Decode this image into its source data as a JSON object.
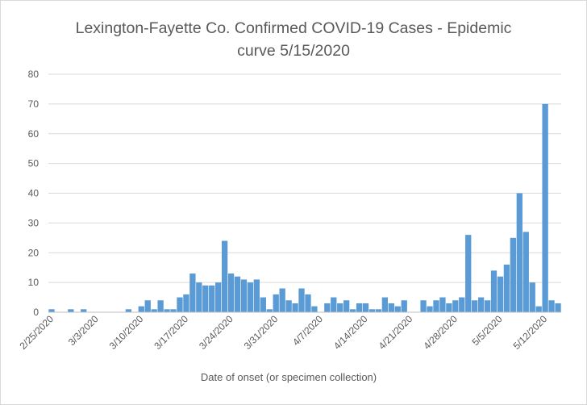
{
  "chart_data": {
    "type": "bar",
    "title_lines": [
      "Lexington-Fayette Co. Confirmed COVID-19 Cases - Epidemic",
      "curve 5/15/2020"
    ],
    "xlabel": "Date of onset (or specimen collection)",
    "ylabel": "",
    "ylim": [
      0,
      80
    ],
    "y_ticks": [
      0,
      10,
      20,
      30,
      40,
      50,
      60,
      70,
      80
    ],
    "grid": true,
    "legend": "none",
    "bar_color": "#5b9bd5",
    "x_tick_labels": [
      "2/25/2020",
      "3/3/2020",
      "3/10/2020",
      "3/17/2020",
      "3/24/2020",
      "3/31/2020",
      "4/7/2020",
      "4/14/2020",
      "4/21/2020",
      "4/28/2020",
      "5/5/2020",
      "5/12/2020"
    ],
    "categories": [
      "2/25/2020",
      "2/26/2020",
      "2/27/2020",
      "2/28/2020",
      "2/29/2020",
      "3/1/2020",
      "3/2/2020",
      "3/3/2020",
      "3/4/2020",
      "3/5/2020",
      "3/6/2020",
      "3/7/2020",
      "3/8/2020",
      "3/9/2020",
      "3/10/2020",
      "3/11/2020",
      "3/12/2020",
      "3/13/2020",
      "3/14/2020",
      "3/15/2020",
      "3/16/2020",
      "3/17/2020",
      "3/18/2020",
      "3/19/2020",
      "3/20/2020",
      "3/21/2020",
      "3/22/2020",
      "3/23/2020",
      "3/24/2020",
      "3/25/2020",
      "3/26/2020",
      "3/27/2020",
      "3/28/2020",
      "3/29/2020",
      "3/30/2020",
      "3/31/2020",
      "4/1/2020",
      "4/2/2020",
      "4/3/2020",
      "4/4/2020",
      "4/5/2020",
      "4/6/2020",
      "4/7/2020",
      "4/8/2020",
      "4/9/2020",
      "4/10/2020",
      "4/11/2020",
      "4/12/2020",
      "4/13/2020",
      "4/14/2020",
      "4/15/2020",
      "4/16/2020",
      "4/17/2020",
      "4/18/2020",
      "4/19/2020",
      "4/20/2020",
      "4/21/2020",
      "4/22/2020",
      "4/23/2020",
      "4/24/2020",
      "4/25/2020",
      "4/26/2020",
      "4/27/2020",
      "4/28/2020",
      "4/29/2020",
      "4/30/2020",
      "5/1/2020",
      "5/2/2020",
      "5/3/2020",
      "5/4/2020",
      "5/5/2020",
      "5/6/2020",
      "5/7/2020",
      "5/8/2020",
      "5/9/2020",
      "5/10/2020",
      "5/11/2020",
      "5/12/2020",
      "5/13/2020",
      "5/14/2020"
    ],
    "values": [
      1,
      0,
      0,
      1,
      0,
      1,
      0,
      0,
      0,
      0,
      0,
      0,
      1,
      0,
      2,
      4,
      1,
      4,
      1,
      1,
      5,
      6,
      13,
      10,
      9,
      9,
      10,
      24,
      13,
      12,
      11,
      10,
      11,
      5,
      1,
      6,
      8,
      4,
      3,
      8,
      6,
      2,
      0,
      3,
      5,
      3,
      4,
      1,
      3,
      3,
      1,
      1,
      5,
      3,
      2,
      4,
      0,
      0,
      4,
      2,
      4,
      5,
      3,
      4,
      5,
      26,
      4,
      5,
      4,
      14,
      12,
      16,
      25,
      40,
      27,
      10,
      2,
      70,
      4,
      3
    ]
  }
}
